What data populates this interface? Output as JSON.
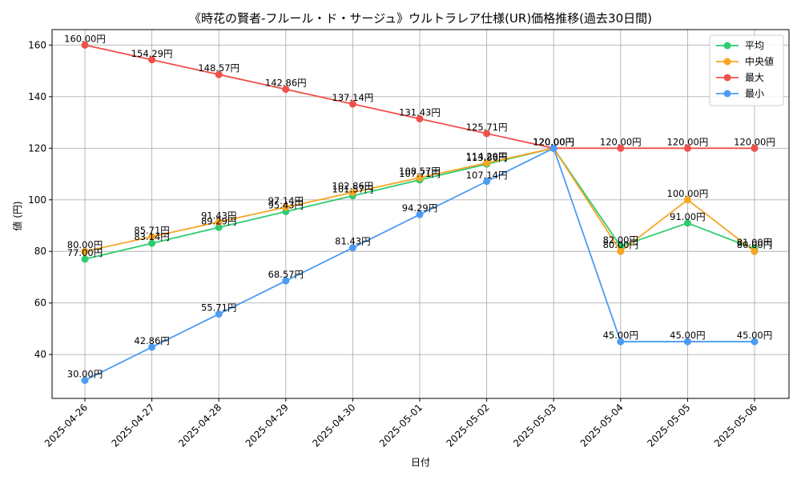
{
  "chart_data": {
    "type": "line",
    "title": "《時花の賢者-フルール・ド・サージュ》ウルトラレア仕様(UR)価格推移(過去30日間)",
    "xlabel": "日付",
    "ylabel": "値 (円)",
    "value_suffix": "円",
    "categories": [
      "2025-04-26",
      "2025-04-27",
      "2025-04-28",
      "2025-04-29",
      "2025-04-30",
      "2025-05-01",
      "2025-05-02",
      "2025-05-03",
      "2025-05-04",
      "2025-05-05",
      "2025-05-06"
    ],
    "ylim": [
      23,
      166
    ],
    "yticks": [
      40,
      60,
      80,
      100,
      120,
      140,
      160
    ],
    "grid": true,
    "legend": "top-right",
    "series": [
      {
        "name": "平均",
        "color": "#2ecc71",
        "values": [
          77.0,
          83.14,
          89.29,
          95.43,
          101.57,
          107.71,
          113.86,
          120.0,
          82.0,
          91.0,
          81.0
        ]
      },
      {
        "name": "中央値",
        "color": "#f5a623",
        "values": [
          80.0,
          85.71,
          91.43,
          97.14,
          102.86,
          108.57,
          114.29,
          120.0,
          80.0,
          100.0,
          80.0
        ]
      },
      {
        "name": "最大",
        "color": "#f0504a",
        "values": [
          160.0,
          154.29,
          148.57,
          142.86,
          137.14,
          131.43,
          125.71,
          120.0,
          120.0,
          120.0,
          120.0
        ]
      },
      {
        "name": "最小",
        "color": "#4c9bf2",
        "values": [
          30.0,
          42.86,
          55.71,
          68.57,
          81.43,
          94.29,
          107.14,
          120.0,
          45.0,
          45.0,
          45.0
        ]
      }
    ]
  }
}
